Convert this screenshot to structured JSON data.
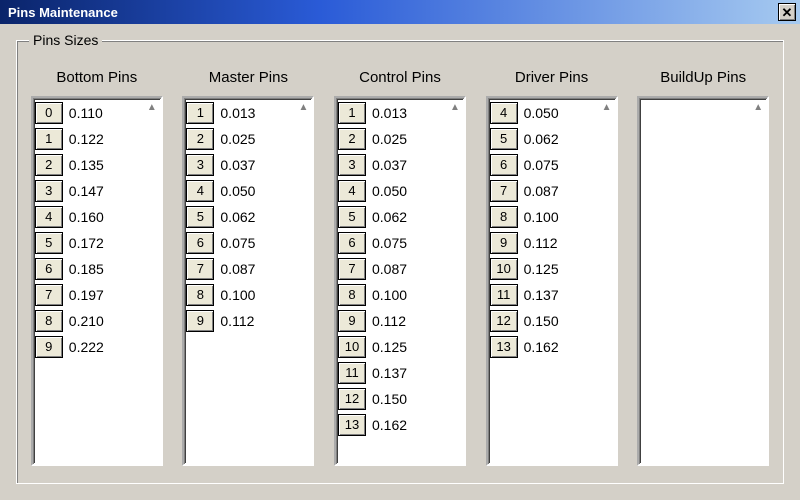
{
  "window": {
    "title": "Pins Maintenance",
    "close_glyph": "✕"
  },
  "fieldset": {
    "legend": "Pins Sizes"
  },
  "columns": [
    {
      "key": "bottom",
      "header": "Bottom Pins",
      "rows": [
        {
          "idx": "0",
          "val": "0.110"
        },
        {
          "idx": "1",
          "val": "0.122"
        },
        {
          "idx": "2",
          "val": "0.135"
        },
        {
          "idx": "3",
          "val": "0.147"
        },
        {
          "idx": "4",
          "val": "0.160"
        },
        {
          "idx": "5",
          "val": "0.172"
        },
        {
          "idx": "6",
          "val": "0.185"
        },
        {
          "idx": "7",
          "val": "0.197"
        },
        {
          "idx": "8",
          "val": "0.210"
        },
        {
          "idx": "9",
          "val": "0.222"
        }
      ]
    },
    {
      "key": "master",
      "header": "Master Pins",
      "rows": [
        {
          "idx": "1",
          "val": "0.013"
        },
        {
          "idx": "2",
          "val": "0.025"
        },
        {
          "idx": "3",
          "val": "0.037"
        },
        {
          "idx": "4",
          "val": "0.050"
        },
        {
          "idx": "5",
          "val": "0.062"
        },
        {
          "idx": "6",
          "val": "0.075"
        },
        {
          "idx": "7",
          "val": "0.087"
        },
        {
          "idx": "8",
          "val": "0.100"
        },
        {
          "idx": "9",
          "val": "0.112"
        }
      ]
    },
    {
      "key": "control",
      "header": "Control Pins",
      "rows": [
        {
          "idx": "1",
          "val": "0.013"
        },
        {
          "idx": "2",
          "val": "0.025"
        },
        {
          "idx": "3",
          "val": "0.037"
        },
        {
          "idx": "4",
          "val": "0.050"
        },
        {
          "idx": "5",
          "val": "0.062"
        },
        {
          "idx": "6",
          "val": "0.075"
        },
        {
          "idx": "7",
          "val": "0.087"
        },
        {
          "idx": "8",
          "val": "0.100"
        },
        {
          "idx": "9",
          "val": "0.112"
        },
        {
          "idx": "10",
          "val": "0.125"
        },
        {
          "idx": "11",
          "val": "0.137"
        },
        {
          "idx": "12",
          "val": "0.150"
        },
        {
          "idx": "13",
          "val": "0.162"
        }
      ]
    },
    {
      "key": "driver",
      "header": "Driver Pins",
      "rows": [
        {
          "idx": "4",
          "val": "0.050"
        },
        {
          "idx": "5",
          "val": "0.062"
        },
        {
          "idx": "6",
          "val": "0.075"
        },
        {
          "idx": "7",
          "val": "0.087"
        },
        {
          "idx": "8",
          "val": "0.100"
        },
        {
          "idx": "9",
          "val": "0.112"
        },
        {
          "idx": "10",
          "val": "0.125"
        },
        {
          "idx": "11",
          "val": "0.137"
        },
        {
          "idx": "12",
          "val": "0.150"
        },
        {
          "idx": "13",
          "val": "0.162"
        }
      ]
    },
    {
      "key": "buildup",
      "header": "BuildUp Pins",
      "rows": []
    }
  ],
  "colors": {
    "bg": "#d4d0c8",
    "titlebar_start": "#0a246a",
    "titlebar_end": "#a6caf0",
    "text": "#000000",
    "listbox_bg": "#ffffff",
    "button_face": "#ece9d8"
  },
  "glyphs": {
    "scroll_up": "▲",
    "scroll_down": "▼"
  }
}
